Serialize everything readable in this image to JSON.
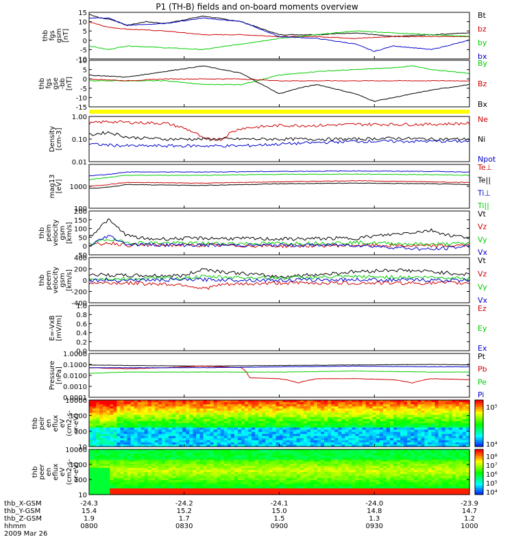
{
  "title": "P1 (TH-B) fields and on-board moments overview",
  "chart_data": [
    {
      "id": "p1",
      "type": "line",
      "ylabel": [
        "thb",
        "fgs",
        "gsm",
        "[nT]"
      ],
      "yticks": [
        "15",
        "10",
        "5",
        "0",
        "-5",
        "-10"
      ],
      "ylim": [
        -10,
        15
      ],
      "legend": [
        {
          "name": "Bt",
          "color": "#000000"
        },
        {
          "name": "bz",
          "color": "#cc0000"
        },
        {
          "name": "by",
          "color": "#00cc00"
        },
        {
          "name": "bx",
          "color": "#0000cc"
        }
      ],
      "series": [
        {
          "name": "Bt",
          "color": "#000000",
          "x": [
            0,
            0.03,
            0.06,
            0.1,
            0.15,
            0.2,
            0.3,
            0.4,
            0.5,
            0.55,
            0.6,
            0.7,
            0.8,
            0.9,
            1.0
          ],
          "y": [
            14,
            12,
            11,
            8,
            10,
            9,
            13,
            10,
            3,
            3,
            3,
            4,
            2,
            3,
            4
          ]
        },
        {
          "name": "bz",
          "color": "#cc0000",
          "x": [
            0,
            0.05,
            0.1,
            0.2,
            0.3,
            0.4,
            0.5,
            0.6,
            0.7,
            0.8,
            0.9,
            1.0
          ],
          "y": [
            10,
            7,
            6,
            5,
            3,
            3,
            2,
            2,
            1,
            2,
            2,
            2
          ]
        },
        {
          "name": "by",
          "color": "#00cc00",
          "x": [
            0,
            0.05,
            0.1,
            0.2,
            0.3,
            0.4,
            0.5,
            0.55,
            0.6,
            0.7,
            0.8,
            0.9,
            1.0
          ],
          "y": [
            -3,
            -5,
            -3,
            -4,
            -5,
            -2,
            1,
            2,
            3,
            5,
            4,
            3,
            2
          ]
        },
        {
          "name": "bx",
          "color": "#0000cc",
          "x": [
            0,
            0.05,
            0.1,
            0.2,
            0.3,
            0.4,
            0.5,
            0.6,
            0.7,
            0.75,
            0.8,
            0.9,
            1.0
          ],
          "y": [
            12,
            12,
            8,
            9,
            12,
            10,
            2,
            1,
            -2,
            -6,
            -3,
            -5,
            0
          ]
        }
      ]
    },
    {
      "id": "p2",
      "type": "line",
      "ylabel": [
        "thb",
        "fgs",
        "gse",
        "-bb",
        "[nT]"
      ],
      "yticks": [
        "10",
        "5",
        "0",
        "-5",
        "-10",
        "-15"
      ],
      "ylim": [
        -15,
        10
      ],
      "legend": [
        {
          "name": "By",
          "color": "#00cc00"
        },
        {
          "name": "Bz",
          "color": "#cc0000"
        },
        {
          "name": "Bx",
          "color": "#000000"
        }
      ],
      "series": [
        {
          "name": "By",
          "color": "#00cc00",
          "x": [
            0,
            0.1,
            0.2,
            0.3,
            0.4,
            0.5,
            0.6,
            0.7,
            0.8,
            0.85,
            0.9,
            1.0
          ],
          "y": [
            -1,
            -1,
            -1,
            -3,
            -3,
            2,
            4,
            5,
            6,
            7,
            5,
            3
          ]
        },
        {
          "name": "Bz",
          "color": "#cc0000",
          "x": [
            0,
            0.1,
            0.2,
            0.3,
            0.4,
            0.5,
            0.6,
            0.7,
            0.8,
            0.9,
            1.0
          ],
          "y": [
            0,
            -1,
            0,
            0,
            0,
            -1,
            -1,
            -1,
            -1,
            -1,
            -1
          ]
        },
        {
          "name": "Bx",
          "color": "#000000",
          "x": [
            0,
            0.1,
            0.2,
            0.3,
            0.4,
            0.5,
            0.55,
            0.6,
            0.7,
            0.75,
            0.8,
            0.9,
            1.0
          ],
          "y": [
            2,
            1,
            4,
            7,
            3,
            -8,
            -5,
            -3,
            -8,
            -12,
            -10,
            -6,
            -3
          ]
        }
      ]
    },
    {
      "id": "p3",
      "type": "line",
      "ylabel": [
        "Density",
        "[cm-3]"
      ],
      "yticks": [
        "1.00",
        "0.10",
        "0.01"
      ],
      "ylim": [
        0.01,
        1
      ],
      "yscale": "log",
      "legend": [
        {
          "name": "Ne",
          "color": "#cc0000"
        },
        {
          "name": "Ni",
          "color": "#000000"
        },
        {
          "name": "Npot",
          "color": "#0000cc"
        }
      ],
      "series": [
        {
          "name": "Ne",
          "color": "#cc0000",
          "x": [
            0,
            0.05,
            0.1,
            0.2,
            0.3,
            0.35,
            0.4,
            0.5,
            0.6,
            0.7,
            0.8,
            0.9,
            1.0
          ],
          "y": [
            0.5,
            0.6,
            0.55,
            0.5,
            0.1,
            0.1,
            0.3,
            0.4,
            0.4,
            0.45,
            0.45,
            0.45,
            0.5
          ]
        },
        {
          "name": "Ni",
          "color": "#000000",
          "x": [
            0,
            0.05,
            0.1,
            0.2,
            0.3,
            0.4,
            0.5,
            0.6,
            0.7,
            0.8,
            0.9,
            1.0
          ],
          "y": [
            0.15,
            0.2,
            0.12,
            0.1,
            0.1,
            0.1,
            0.1,
            0.1,
            0.1,
            0.11,
            0.1,
            0.1
          ]
        },
        {
          "name": "Npot",
          "color": "#0000cc",
          "x": [
            0,
            0.1,
            0.2,
            0.3,
            0.4,
            0.5,
            0.6,
            0.7,
            0.8,
            0.9,
            1.0
          ],
          "y": [
            0.06,
            0.05,
            0.05,
            0.05,
            0.05,
            0.06,
            0.07,
            0.08,
            0.08,
            0.08,
            0.08
          ]
        }
      ]
    },
    {
      "id": "p4",
      "type": "line",
      "ylabel": [
        "mag13",
        "[eV]"
      ],
      "yticks": [
        "1000",
        "100"
      ],
      "ylim": [
        100,
        10000
      ],
      "yscale": "log",
      "legend": [
        {
          "name": "Te⊥",
          "color": "#cc0000"
        },
        {
          "name": "Te||",
          "color": "#000000"
        },
        {
          "name": "Ti⊥",
          "color": "#0000cc"
        },
        {
          "name": "Ti||",
          "color": "#00cc00"
        }
      ],
      "series": [
        {
          "name": "Te⊥",
          "color": "#cc0000",
          "x": [
            0,
            0.05,
            0.1,
            0.3,
            0.5,
            0.7,
            0.9,
            1.0
          ],
          "y": [
            1000,
            1200,
            1500,
            1400,
            1600,
            1800,
            1600,
            1500
          ]
        },
        {
          "name": "Te||",
          "color": "#000000",
          "x": [
            0,
            0.05,
            0.1,
            0.3,
            0.5,
            0.7,
            0.9,
            1.0
          ],
          "y": [
            800,
            900,
            1200,
            1100,
            1300,
            1400,
            1300,
            1200
          ]
        },
        {
          "name": "Ti⊥",
          "color": "#0000cc",
          "x": [
            0,
            0.05,
            0.1,
            0.3,
            0.5,
            0.7,
            0.9,
            1.0
          ],
          "y": [
            3000,
            3500,
            4500,
            4500,
            4800,
            5000,
            4800,
            4500
          ]
        },
        {
          "name": "Ti||",
          "color": "#00cc00",
          "x": [
            0,
            0.05,
            0.1,
            0.3,
            0.5,
            0.7,
            0.9,
            1.0
          ],
          "y": [
            2000,
            2500,
            3200,
            3200,
            3500,
            3600,
            3400,
            3200
          ]
        }
      ]
    },
    {
      "id": "p5",
      "type": "line",
      "ylabel": [
        "thb",
        "peim",
        "velocity",
        "gsm",
        "[km/s]"
      ],
      "yticks": [
        "200",
        "150",
        "100",
        "50",
        "0",
        "-50"
      ],
      "ylim": [
        -50,
        200
      ],
      "legend": [
        {
          "name": "Vt",
          "color": "#000000"
        },
        {
          "name": "Vz",
          "color": "#cc0000"
        },
        {
          "name": "Vy",
          "color": "#00cc00"
        },
        {
          "name": "Vx",
          "color": "#0000cc"
        }
      ],
      "series": [
        {
          "name": "Vt",
          "color": "#000000",
          "x": [
            0,
            0.05,
            0.1,
            0.15,
            0.3,
            0.5,
            0.7,
            0.9,
            0.95,
            1.0
          ],
          "y": [
            50,
            150,
            60,
            40,
            45,
            40,
            45,
            90,
            60,
            50
          ]
        },
        {
          "name": "Vz",
          "color": "#cc0000",
          "x": [
            0,
            0.05,
            0.1,
            0.3,
            0.5,
            0.7,
            0.9,
            1.0
          ],
          "y": [
            0,
            20,
            5,
            5,
            0,
            5,
            0,
            5
          ]
        },
        {
          "name": "Vy",
          "color": "#00cc00",
          "x": [
            0,
            0.05,
            0.1,
            0.3,
            0.5,
            0.7,
            0.9,
            1.0
          ],
          "y": [
            10,
            40,
            20,
            15,
            15,
            20,
            10,
            15
          ]
        },
        {
          "name": "Vx",
          "color": "#0000cc",
          "x": [
            0,
            0.05,
            0.1,
            0.3,
            0.5,
            0.7,
            0.9,
            1.0
          ],
          "y": [
            0,
            60,
            10,
            5,
            5,
            5,
            -20,
            0
          ]
        }
      ]
    },
    {
      "id": "p6",
      "type": "line",
      "ylabel": [
        "thb",
        "peem",
        "velocity",
        "gsm",
        "[km/s]"
      ],
      "yticks": [
        "400",
        "200",
        "0",
        "-200",
        "-400"
      ],
      "ylim": [
        -400,
        400
      ],
      "legend": [
        {
          "name": "Vt",
          "color": "#000000"
        },
        {
          "name": "Vz",
          "color": "#cc0000"
        },
        {
          "name": "Vy",
          "color": "#00cc00"
        },
        {
          "name": "Vx",
          "color": "#0000cc"
        }
      ],
      "series": [
        {
          "name": "Vt",
          "color": "#000000",
          "x": [
            0,
            0.1,
            0.25,
            0.3,
            0.35,
            0.5,
            0.6,
            0.7,
            0.8,
            0.9,
            1.0
          ],
          "y": [
            100,
            80,
            80,
            200,
            150,
            60,
            100,
            150,
            180,
            150,
            100
          ]
        },
        {
          "name": "Vz",
          "color": "#cc0000",
          "x": [
            0,
            0.1,
            0.25,
            0.3,
            0.35,
            0.5,
            0.7,
            0.9,
            1.0
          ],
          "y": [
            -50,
            -50,
            -80,
            -150,
            -80,
            -50,
            -50,
            -50,
            -50
          ]
        },
        {
          "name": "Vy",
          "color": "#00cc00",
          "x": [
            0,
            0.1,
            0.25,
            0.3,
            0.5,
            0.7,
            0.9,
            1.0
          ],
          "y": [
            30,
            20,
            40,
            60,
            40,
            60,
            50,
            40
          ]
        },
        {
          "name": "Vx",
          "color": "#0000cc",
          "x": [
            0,
            0.1,
            0.3,
            0.5,
            0.7,
            0.9,
            1.0
          ],
          "y": [
            0,
            0,
            10,
            0,
            10,
            0,
            0
          ]
        }
      ]
    },
    {
      "id": "p7",
      "type": "line",
      "ylabel": [
        "E=-VxB",
        "[mV/m]"
      ],
      "yticks": [
        "1.0",
        "0.8",
        "0.6",
        "0.4",
        "0.2",
        "0.0"
      ],
      "ylim": [
        0,
        1
      ],
      "legend": [
        {
          "name": "Ez",
          "color": "#cc0000"
        },
        {
          "name": "Ey",
          "color": "#00cc00"
        },
        {
          "name": "Ex",
          "color": "#0000cc"
        }
      ],
      "series": []
    },
    {
      "id": "p8",
      "type": "line",
      "ylabel": [
        "Pressure",
        "[nPa]"
      ],
      "yticks": [
        "1.0000",
        "0.1000",
        "0.0100",
        "0.0010",
        "0.0001"
      ],
      "ylim": [
        0.0001,
        1
      ],
      "yscale": "log",
      "legend": [
        {
          "name": "Pt",
          "color": "#000000"
        },
        {
          "name": "Pb",
          "color": "#cc0000"
        },
        {
          "name": "Pe",
          "color": "#00cc00"
        },
        {
          "name": "Pi",
          "color": "#0000cc"
        }
      ],
      "series": [
        {
          "name": "Pt",
          "color": "#000000",
          "x": [
            0,
            0.1,
            0.3,
            0.5,
            0.7,
            0.9,
            1.0
          ],
          "y": [
            0.09,
            0.08,
            0.07,
            0.08,
            0.09,
            0.1,
            0.09
          ]
        },
        {
          "name": "Pb",
          "color": "#cc0000",
          "x": [
            0,
            0.1,
            0.2,
            0.3,
            0.4,
            0.42,
            0.5,
            0.55,
            0.6,
            0.7,
            0.8,
            0.85,
            0.9,
            1.0
          ],
          "y": [
            0.05,
            0.04,
            0.05,
            0.07,
            0.05,
            0.006,
            0.005,
            0.002,
            0.005,
            0.005,
            0.004,
            0.002,
            0.005,
            0.004
          ]
        },
        {
          "name": "Pe",
          "color": "#00cc00",
          "x": [
            0,
            0.1,
            0.3,
            0.5,
            0.7,
            0.9,
            1.0
          ],
          "y": [
            0.015,
            0.02,
            0.02,
            0.02,
            0.025,
            0.02,
            0.02
          ]
        },
        {
          "name": "Pi",
          "color": "#0000cc",
          "x": [
            0,
            0.1,
            0.3,
            0.5,
            0.7,
            0.9,
            1.0
          ],
          "y": [
            0.05,
            0.05,
            0.05,
            0.06,
            0.07,
            0.06,
            0.06
          ]
        }
      ]
    },
    {
      "id": "p9",
      "type": "heatmap",
      "ylabel": [
        "thb",
        "peir",
        "en",
        "eflux",
        "eV",
        "(cm2-s-",
        "sr-eV)"
      ],
      "yticks": [
        "10000",
        "1000",
        "100",
        "10"
      ],
      "ylim": [
        10,
        10000
      ],
      "yscale": "log",
      "colorbar": {
        "ticks": [
          "10⁵",
          "10⁴"
        ],
        "low": "#0000ff",
        "high": "#ff0000"
      }
    },
    {
      "id": "p10",
      "type": "heatmap",
      "ylabel": [
        "thb",
        "peer",
        "en",
        "eflux",
        "eV",
        "(cm2-s-",
        "sr-eV)"
      ],
      "yticks": [
        "10000",
        "1000",
        "100",
        "10"
      ],
      "ylim": [
        10,
        10000
      ],
      "yscale": "log",
      "colorbar": {
        "ticks": [
          "10⁸",
          "10⁷",
          "10⁶",
          "10⁵",
          "10⁴"
        ],
        "low": "#0000ff",
        "high": "#ff0000"
      }
    }
  ],
  "xaxis": {
    "rows": [
      {
        "label": "thb_X-GSM",
        "values": [
          "-24.3",
          "-24.2",
          "-24.1",
          "-24.0",
          "-23.9"
        ]
      },
      {
        "label": "thb_Y-GSM",
        "values": [
          "15.4",
          "15.2",
          "15.0",
          "14.8",
          "14.7"
        ]
      },
      {
        "label": "thb_Z-GSM",
        "values": [
          "1.9",
          "1.7",
          "1.5",
          "1.3",
          "1.2"
        ]
      },
      {
        "label": "hhmm",
        "values": [
          "0800",
          "0830",
          "0900",
          "0930",
          "1000"
        ]
      }
    ],
    "date": "2009 Mar 26"
  },
  "colors": {
    "flag_bar": "#ffff00",
    "axis": "#000000"
  }
}
